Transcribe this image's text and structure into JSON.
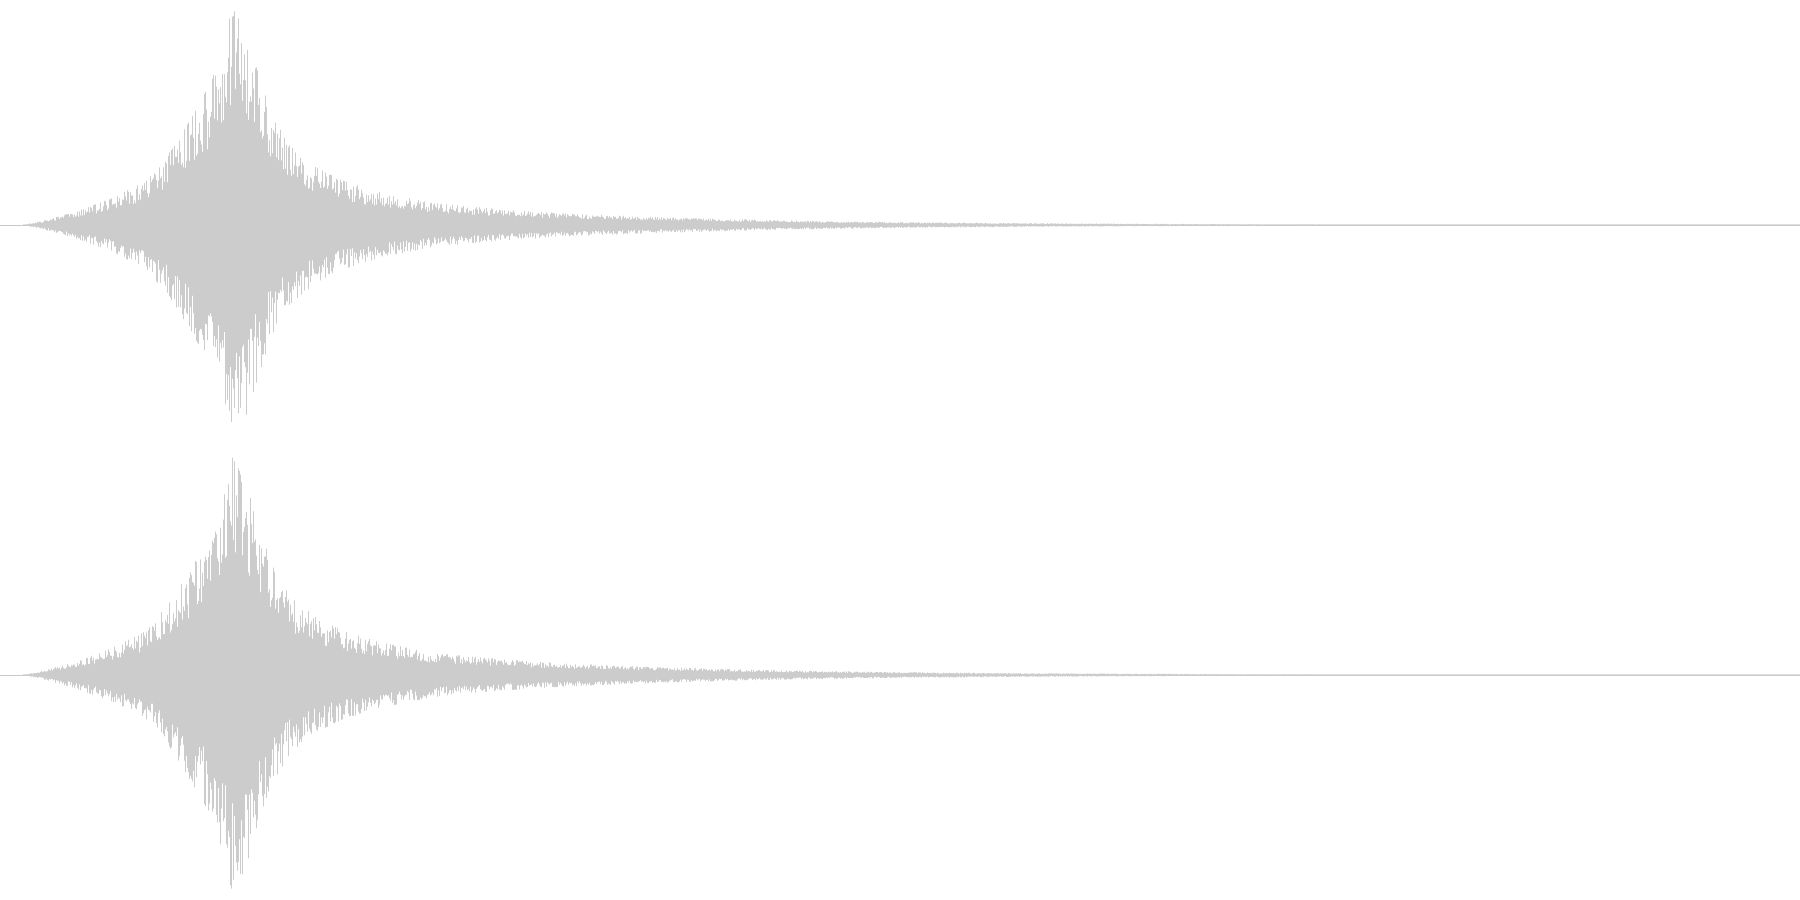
{
  "chart_data": {
    "type": "area",
    "waveform": {
      "channels": 2,
      "channel_names": [],
      "fill_color": "#cccccc",
      "baseline_color": "#c8c8c8",
      "background_color": "#ffffff",
      "amplitude_range": [
        -1,
        1
      ],
      "envelope": {
        "time_unit": "fraction",
        "x": [
          0.0,
          0.012,
          0.03,
          0.05,
          0.07,
          0.085,
          0.1,
          0.11,
          0.118,
          0.125,
          0.132,
          0.14,
          0.15,
          0.165,
          0.18,
          0.2,
          0.23,
          0.27,
          0.31,
          0.36,
          0.42,
          0.48,
          0.55,
          0.62,
          0.68,
          0.73,
          0.76,
          0.78,
          0.8,
          0.82,
          0.84,
          1.0
        ],
        "peak": [
          0.0,
          0.02,
          0.06,
          0.12,
          0.2,
          0.35,
          0.55,
          0.72,
          0.98,
          0.88,
          0.7,
          0.5,
          0.36,
          0.26,
          0.2,
          0.15,
          0.1,
          0.07,
          0.05,
          0.035,
          0.022,
          0.014,
          0.009,
          0.006,
          0.004,
          0.003,
          0.002,
          0.001,
          0.0006,
          0.0003,
          0.0001,
          0.0
        ]
      }
    }
  }
}
